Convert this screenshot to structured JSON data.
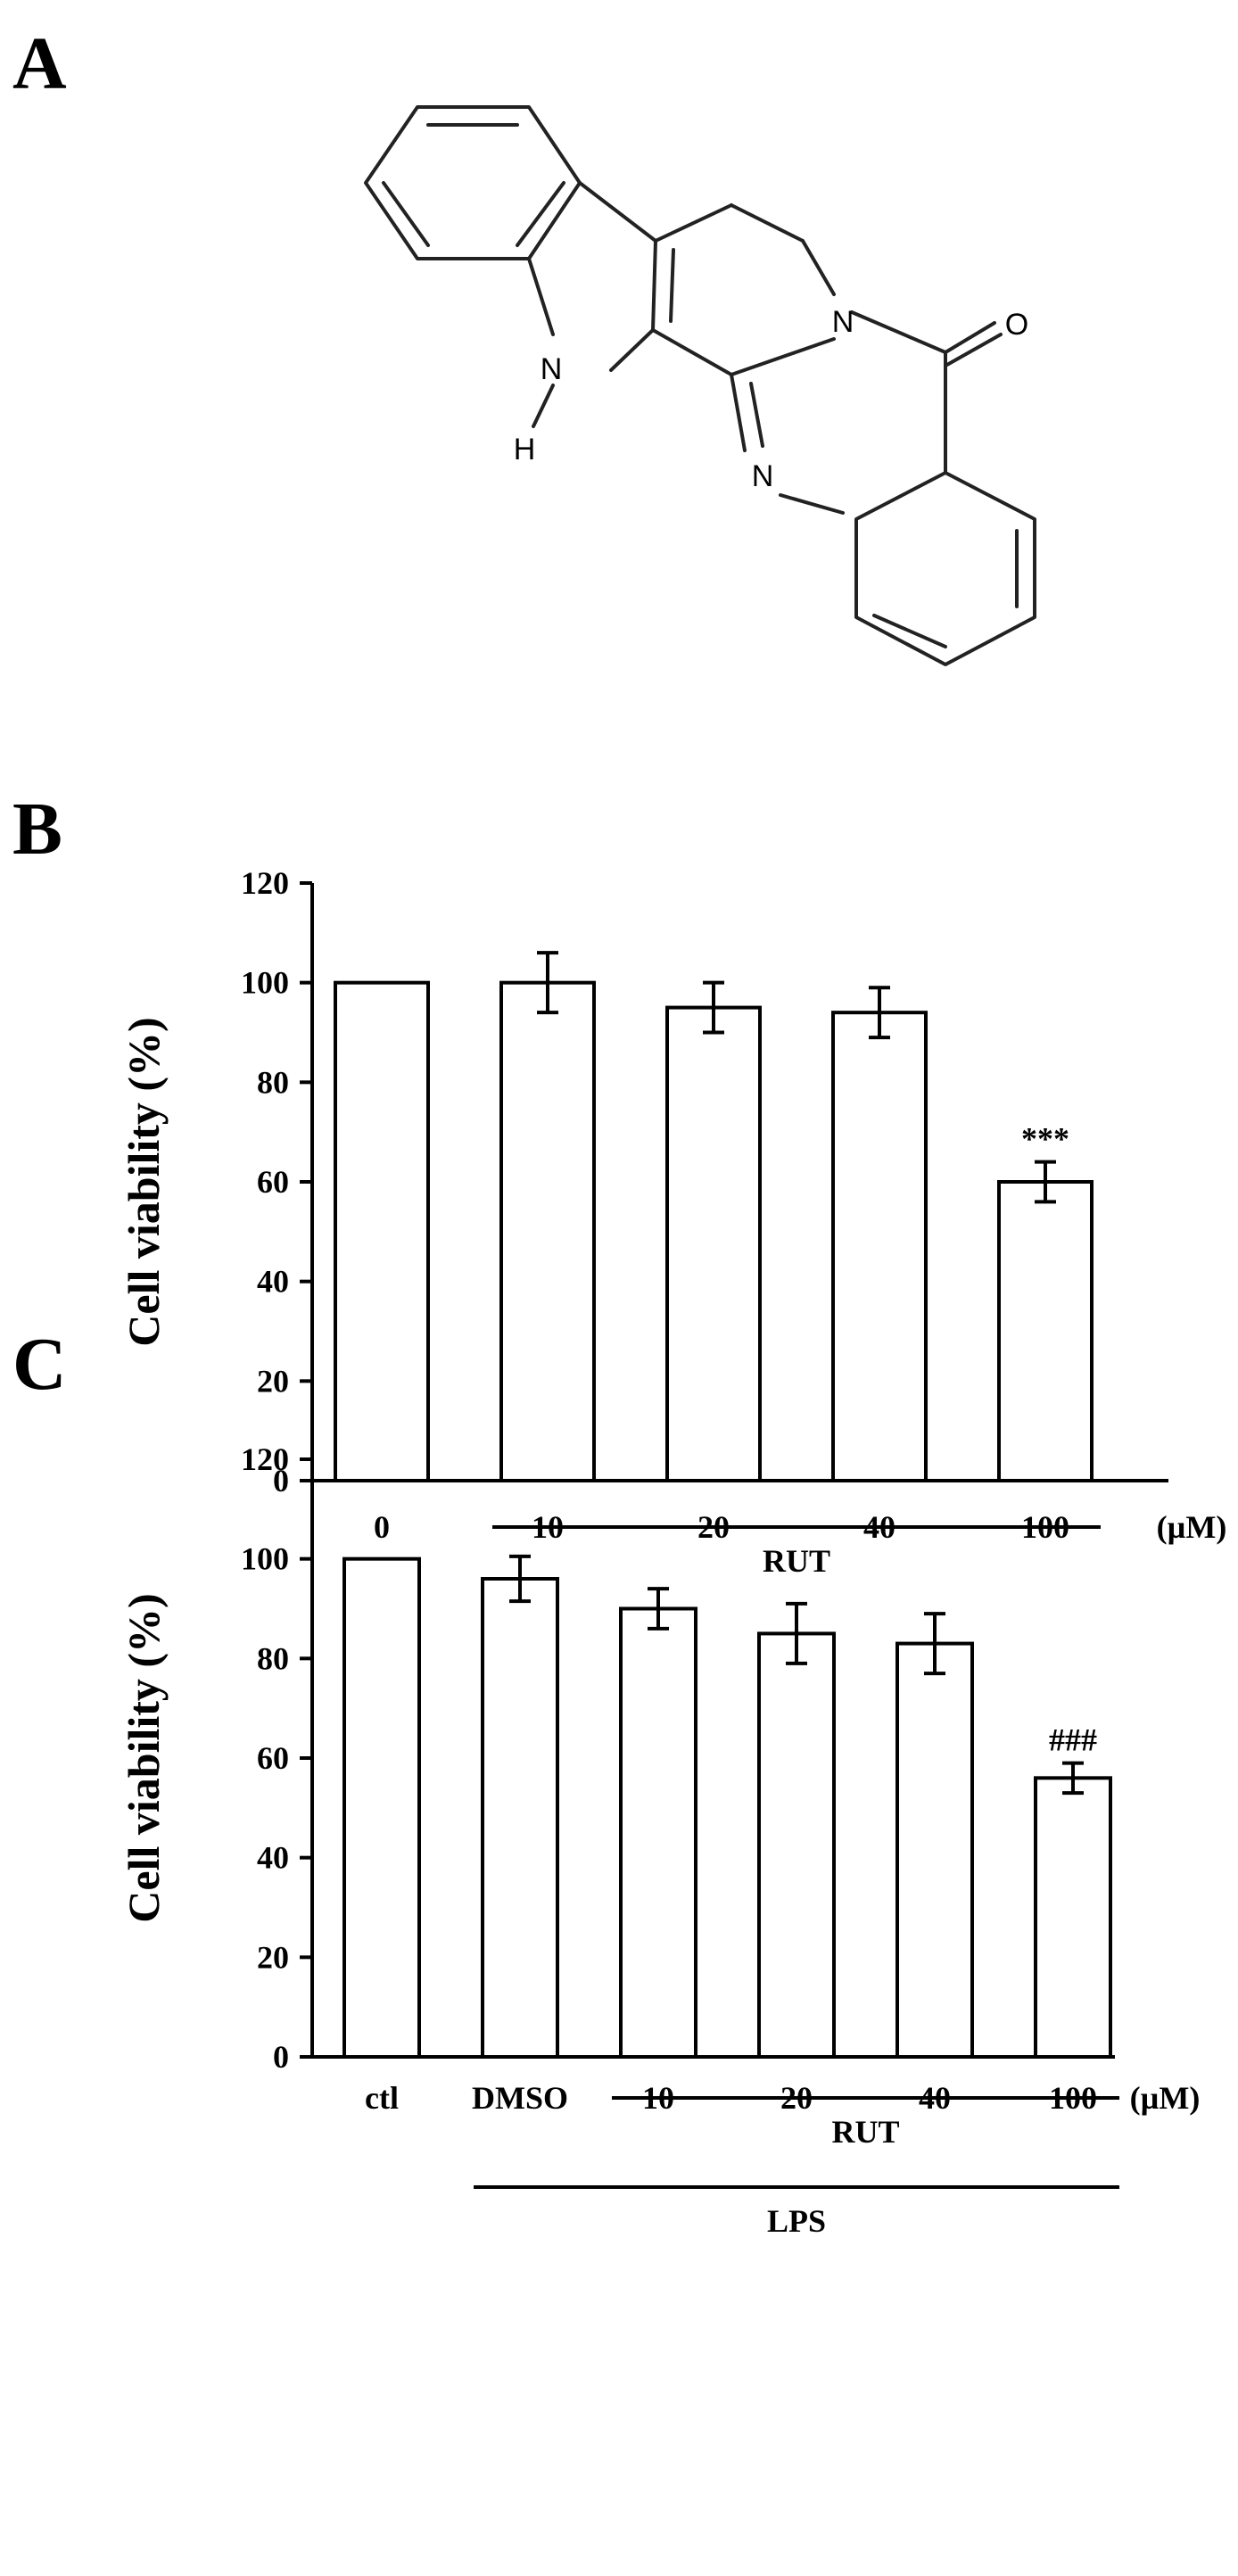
{
  "panels": {
    "a_label": "A",
    "b_label": "B",
    "c_label": "C"
  },
  "molecule": {
    "atoms": {
      "N_indole": "N",
      "H": "H",
      "N_amide": "N",
      "O": "O",
      "N_imine": "N"
    }
  },
  "chart_data": [
    {
      "type": "bar",
      "categories": [
        "0",
        "10",
        "20",
        "40",
        "100"
      ],
      "values": [
        100,
        100,
        95,
        94,
        60
      ],
      "errors": [
        0,
        6,
        5,
        5,
        4
      ],
      "annotations": [
        "",
        "",
        "",
        "",
        "***"
      ],
      "unit_label": "(µM)",
      "ylabel": "Cell viability (%)",
      "ylim": [
        0,
        120
      ],
      "yticks": [
        0,
        20,
        40,
        60,
        80,
        100,
        120
      ],
      "groups": [
        {
          "label": "RUT",
          "from": 1,
          "to": 4
        }
      ]
    },
    {
      "type": "bar",
      "categories": [
        "ctl",
        "DMSO",
        "10",
        "20",
        "40",
        "100"
      ],
      "values": [
        100,
        96,
        90,
        85,
        83,
        56
      ],
      "errors": [
        0,
        4.5,
        4,
        6,
        6,
        3
      ],
      "annotations": [
        "",
        "",
        "",
        "",
        "",
        "###"
      ],
      "unit_label": "(µM)",
      "ylabel": "Cell viability (%)",
      "ylim": [
        0,
        120
      ],
      "yticks": [
        0,
        20,
        40,
        60,
        80,
        100,
        120
      ],
      "groups": [
        {
          "label": "RUT",
          "from": 2,
          "to": 5
        },
        {
          "label": "LPS",
          "from": 1,
          "to": 5
        }
      ]
    }
  ]
}
